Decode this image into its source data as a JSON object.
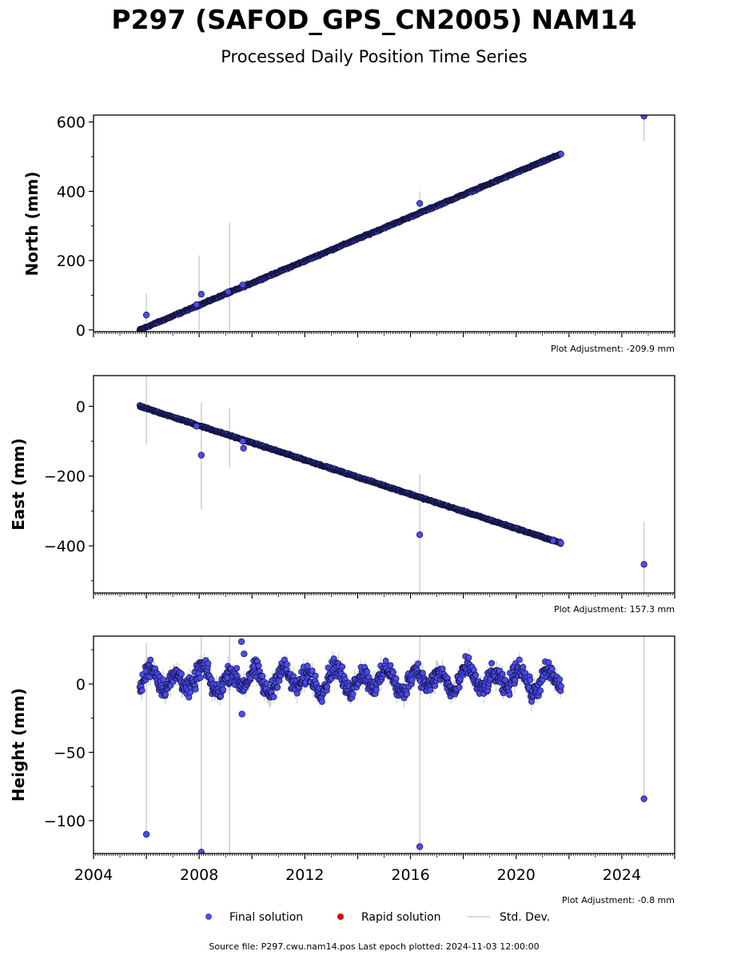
{
  "figure": {
    "title": "P297 (SAFOD_GPS_CN2005) NAM14",
    "subtitle": "Processed Daily Position Time Series",
    "source_text": "Source file: P297.cwu.nam14.pos  Last epoch plotted: 2024-11-03 12:00:00"
  },
  "legend": {
    "items": [
      {
        "label": "Final solution",
        "kind": "marker",
        "color": "#4b4bf0"
      },
      {
        "label": "Rapid solution",
        "kind": "marker",
        "color": "#e00000"
      },
      {
        "label": "Std. Dev.",
        "kind": "line",
        "color": "#cccccc"
      }
    ]
  },
  "colors": {
    "final_fill": "#4b4bf0",
    "marker_edge": "#11113a",
    "errorbar": "#cccccc",
    "rapid": "#e00000"
  },
  "chart_data": [
    {
      "type": "scatter",
      "ylabel": "North (mm)",
      "plot_adjustment": "Plot Adjustment: -209.9 mm",
      "xlim": [
        2004.0,
        2026.0
      ],
      "ylim": [
        -5,
        620
      ],
      "yticks": [
        0,
        200,
        400,
        600
      ],
      "ytick_labels": [
        "0",
        "200",
        "400",
        "600"
      ],
      "show_xtick_labels": false,
      "trend": {
        "x_start": 2005.75,
        "x_end": 2021.7,
        "y_start": 0,
        "y_end": 508,
        "noise": 2,
        "seasonal": 0
      },
      "error_bars": [
        {
          "x": 2006.0,
          "ylow": 0,
          "yhigh": 105
        },
        {
          "x": 2008.0,
          "ylow": 0,
          "yhigh": 215
        },
        {
          "x": 2009.15,
          "ylow": 0,
          "yhigh": 310
        },
        {
          "x": 2016.35,
          "ylow": 340,
          "yhigh": 400
        },
        {
          "x": 2024.84,
          "ylow": 545,
          "yhigh": 620
        }
      ],
      "outliers": [
        {
          "x": 2006.0,
          "y": 43
        },
        {
          "x": 2007.9,
          "y": 73
        },
        {
          "x": 2008.08,
          "y": 103
        },
        {
          "x": 2009.1,
          "y": 110
        },
        {
          "x": 2009.65,
          "y": 130
        },
        {
          "x": 2016.35,
          "y": 365
        },
        {
          "x": 2024.84,
          "y": 617
        }
      ]
    },
    {
      "type": "scatter",
      "ylabel": "East (mm)",
      "plot_adjustment": "Plot Adjustment: 157.3 mm",
      "xlim": [
        2004.0,
        2026.0
      ],
      "ylim": [
        -535,
        88
      ],
      "yticks": [
        0,
        -200,
        -400
      ],
      "ytick_labels": [
        "0",
        "−200",
        "−400"
      ],
      "show_xtick_labels": false,
      "trend": {
        "x_start": 2005.75,
        "x_end": 2021.7,
        "y_start": 0,
        "y_end": -392,
        "noise": 2,
        "seasonal": 0
      },
      "error_bars": [
        {
          "x": 2006.0,
          "ylow": -110,
          "yhigh": 88
        },
        {
          "x": 2008.08,
          "ylow": -295,
          "yhigh": 12
        },
        {
          "x": 2009.15,
          "ylow": -175,
          "yhigh": -5
        },
        {
          "x": 2016.35,
          "ylow": -535,
          "yhigh": -195
        },
        {
          "x": 2024.84,
          "ylow": -535,
          "yhigh": -330
        }
      ],
      "outliers": [
        {
          "x": 2007.9,
          "y": -57
        },
        {
          "x": 2008.08,
          "y": -140
        },
        {
          "x": 2009.65,
          "y": -100
        },
        {
          "x": 2009.68,
          "y": -120
        },
        {
          "x": 2016.35,
          "y": -368
        },
        {
          "x": 2021.4,
          "y": -385
        },
        {
          "x": 2024.84,
          "y": -453
        }
      ]
    },
    {
      "type": "scatter",
      "ylabel": "Height (mm)",
      "plot_adjustment": "Plot Adjustment: -0.8 mm",
      "xlim": [
        2004.0,
        2026.0
      ],
      "ylim": [
        -124,
        35
      ],
      "yticks": [
        0,
        -50,
        -100
      ],
      "ytick_labels": [
        "0",
        "−50",
        "−100"
      ],
      "show_xtick_labels": true,
      "xticks": [
        2004,
        2008,
        2012,
        2016,
        2020,
        2024
      ],
      "xtick_labels": [
        "2004",
        "2008",
        "2012",
        "2016",
        "2020",
        "2024"
      ],
      "trend": {
        "x_start": 2005.75,
        "x_end": 2021.7,
        "y_start": 3,
        "y_end": 3,
        "noise": 6,
        "seasonal": 7
      },
      "error_bars": [
        {
          "x": 2006.0,
          "ylow": -110,
          "yhigh": 30
        },
        {
          "x": 2008.08,
          "ylow": -124,
          "yhigh": 35
        },
        {
          "x": 2009.15,
          "ylow": -124,
          "yhigh": 35
        },
        {
          "x": 2016.35,
          "ylow": -124,
          "yhigh": 35
        },
        {
          "x": 2024.84,
          "ylow": -85,
          "yhigh": 35
        }
      ],
      "outliers": [
        {
          "x": 2006.0,
          "y": -110
        },
        {
          "x": 2008.08,
          "y": -123
        },
        {
          "x": 2009.6,
          "y": 31
        },
        {
          "x": 2009.62,
          "y": -22
        },
        {
          "x": 2009.7,
          "y": 22
        },
        {
          "x": 2016.35,
          "y": -119
        },
        {
          "x": 2024.84,
          "y": -84
        }
      ]
    }
  ]
}
